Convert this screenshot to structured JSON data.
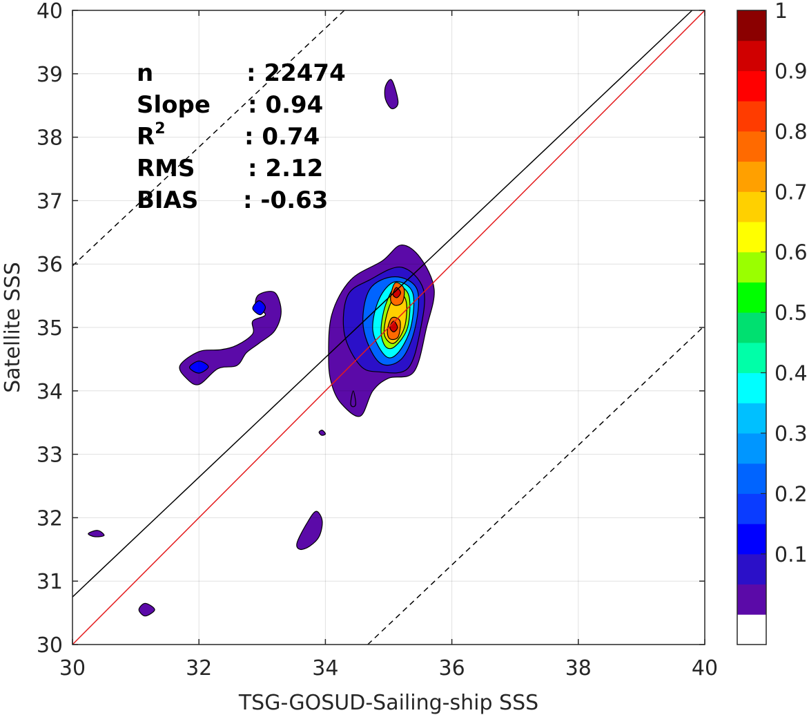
{
  "chart_data": {
    "type": "contour",
    "xlabel": "TSG-GOSUD-Sailing-ship SSS",
    "ylabel": "Satellite SSS",
    "xlim": [
      30,
      40
    ],
    "ylim": [
      30,
      40
    ],
    "xticks": [
      "30",
      "32",
      "34",
      "36",
      "38",
      "40"
    ],
    "yticks": [
      "30",
      "31",
      "32",
      "33",
      "34",
      "35",
      "36",
      "37",
      "38",
      "39",
      "40"
    ],
    "grid": true,
    "stats": [
      {
        "label": "n",
        "value": ": 22474"
      },
      {
        "label": "Slope",
        "value": ": 0.94"
      },
      {
        "label": "R",
        "sup": "2",
        "value": ": 0.74"
      },
      {
        "label": "RMS",
        "value": ": 2.12"
      },
      {
        "label": "BIAS",
        "value": ": -0.63"
      }
    ],
    "lines": [
      {
        "kind": "identity",
        "color": "#e41a1c",
        "x": [
          30,
          40
        ],
        "y": [
          30,
          40
        ]
      },
      {
        "kind": "regression",
        "color": "#000000",
        "x": [
          30,
          39.8
        ],
        "y": [
          30.75,
          40
        ]
      },
      {
        "kind": "upper-bound",
        "style": "dashed",
        "color": "#000000",
        "x": [
          30,
          34.3
        ],
        "y": [
          35.97,
          40
        ]
      },
      {
        "kind": "lower-bound",
        "style": "dashed",
        "color": "#000000",
        "x": [
          34.67,
          40
        ],
        "y": [
          30,
          35.03
        ]
      }
    ],
    "colorbar": {
      "ticks": [
        "0.1",
        "0.2",
        "0.3",
        "0.4",
        "0.5",
        "0.6",
        "0.7",
        "0.8",
        "0.9",
        "1"
      ],
      "colors": [
        "#ffffff",
        "#5b0aa8",
        "#2b10c8",
        "#0000ff",
        "#0a3cff",
        "#0064ff",
        "#0096ff",
        "#00c0ff",
        "#00ffff",
        "#00ffa8",
        "#00e070",
        "#00ff00",
        "#9aff00",
        "#ffff00",
        "#ffd000",
        "#ffa000",
        "#ff6a00",
        "#ff3c00",
        "#ff0000",
        "#d00000",
        "#8b0000"
      ]
    },
    "blobs": [
      {
        "level": 1,
        "points": [
          [
            34.05,
            34.5
          ],
          [
            34.1,
            35.2
          ],
          [
            34.4,
            35.75
          ],
          [
            34.9,
            36.05
          ],
          [
            35.2,
            36.3
          ],
          [
            35.5,
            36.1
          ],
          [
            35.72,
            35.6
          ],
          [
            35.6,
            35.0
          ],
          [
            35.4,
            34.3
          ],
          [
            35.0,
            34.2
          ],
          [
            34.75,
            34.0
          ],
          [
            34.55,
            33.6
          ],
          [
            34.25,
            33.8
          ],
          [
            34.1,
            34.1
          ]
        ]
      },
      {
        "level": 2,
        "points": [
          [
            34.3,
            34.9
          ],
          [
            34.35,
            35.5
          ],
          [
            34.7,
            35.75
          ],
          [
            35.2,
            35.95
          ],
          [
            35.55,
            35.6
          ],
          [
            35.5,
            34.95
          ],
          [
            35.3,
            34.35
          ],
          [
            34.85,
            34.3
          ],
          [
            34.55,
            34.4
          ]
        ]
      },
      {
        "level": 5,
        "points": [
          [
            34.6,
            35.0
          ],
          [
            34.7,
            35.6
          ],
          [
            35.1,
            35.8
          ],
          [
            35.45,
            35.6
          ],
          [
            35.42,
            35.0
          ],
          [
            35.2,
            34.5
          ],
          [
            34.85,
            34.45
          ]
        ]
      },
      {
        "level": 8,
        "points": [
          [
            34.75,
            34.95
          ],
          [
            34.85,
            35.45
          ],
          [
            35.1,
            35.72
          ],
          [
            35.38,
            35.55
          ],
          [
            35.35,
            35.0
          ],
          [
            35.15,
            34.6
          ],
          [
            34.95,
            34.55
          ]
        ]
      },
      {
        "level": 12,
        "points": [
          [
            34.88,
            34.95
          ],
          [
            34.95,
            35.35
          ],
          [
            35.12,
            35.65
          ],
          [
            35.32,
            35.5
          ],
          [
            35.3,
            35.0
          ],
          [
            35.1,
            34.7
          ],
          [
            34.95,
            34.7
          ]
        ]
      },
      {
        "level": 14,
        "points": [
          [
            34.93,
            34.9
          ],
          [
            35.0,
            35.3
          ],
          [
            35.15,
            35.55
          ],
          [
            35.28,
            35.4
          ],
          [
            35.25,
            35.0
          ],
          [
            35.08,
            34.75
          ]
        ]
      },
      {
        "level": 16,
        "points": [
          [
            34.98,
            34.95
          ],
          [
            35.05,
            35.15
          ],
          [
            35.18,
            35.1
          ],
          [
            35.15,
            34.85
          ],
          [
            35.02,
            34.82
          ]
        ]
      },
      {
        "level": 16,
        "points": [
          [
            35.03,
            35.45
          ],
          [
            35.1,
            35.7
          ],
          [
            35.24,
            35.62
          ],
          [
            35.22,
            35.4
          ],
          [
            35.1,
            35.35
          ]
        ]
      },
      {
        "level": 19,
        "points": [
          [
            35.02,
            35.0
          ],
          [
            35.08,
            35.1
          ],
          [
            35.14,
            35.0
          ],
          [
            35.08,
            34.93
          ]
        ]
      },
      {
        "level": 19,
        "points": [
          [
            35.07,
            35.52
          ],
          [
            35.12,
            35.63
          ],
          [
            35.19,
            35.55
          ],
          [
            35.13,
            35.47
          ]
        ]
      },
      {
        "level": 1,
        "points": [
          [
            31.7,
            34.4
          ],
          [
            32.0,
            34.62
          ],
          [
            32.35,
            34.65
          ],
          [
            32.6,
            34.72
          ],
          [
            32.85,
            34.9
          ],
          [
            32.85,
            35.1
          ],
          [
            33.05,
            35.2
          ],
          [
            32.9,
            35.35
          ],
          [
            32.95,
            35.52
          ],
          [
            33.2,
            35.55
          ],
          [
            33.3,
            35.25
          ],
          [
            33.2,
            34.95
          ],
          [
            32.95,
            34.75
          ],
          [
            32.75,
            34.6
          ],
          [
            32.6,
            34.4
          ],
          [
            32.3,
            34.35
          ],
          [
            32.0,
            34.1
          ],
          [
            31.8,
            34.2
          ]
        ]
      },
      {
        "level": 3,
        "points": [
          [
            31.85,
            34.37
          ],
          [
            32.0,
            34.47
          ],
          [
            32.15,
            34.38
          ],
          [
            32.0,
            34.28
          ]
        ]
      },
      {
        "level": 3,
        "points": [
          [
            32.85,
            35.3
          ],
          [
            32.95,
            35.42
          ],
          [
            33.05,
            35.32
          ],
          [
            32.97,
            35.2
          ]
        ]
      },
      {
        "level": 1,
        "points": [
          [
            34.95,
            38.8
          ],
          [
            35.05,
            38.9
          ],
          [
            35.15,
            38.55
          ],
          [
            35.05,
            38.45
          ],
          [
            34.95,
            38.6
          ]
        ]
      },
      {
        "level": 1,
        "points": [
          [
            33.55,
            31.6
          ],
          [
            33.7,
            31.9
          ],
          [
            33.85,
            32.1
          ],
          [
            33.95,
            31.95
          ],
          [
            33.9,
            31.7
          ],
          [
            33.75,
            31.55
          ],
          [
            33.6,
            31.5
          ]
        ]
      },
      {
        "level": 1,
        "points": [
          [
            30.25,
            31.75
          ],
          [
            30.4,
            31.8
          ],
          [
            30.5,
            31.72
          ],
          [
            30.35,
            31.7
          ]
        ]
      },
      {
        "level": 1,
        "points": [
          [
            31.05,
            30.55
          ],
          [
            31.15,
            30.65
          ],
          [
            31.3,
            30.55
          ],
          [
            31.15,
            30.45
          ]
        ]
      },
      {
        "level": 1,
        "points": [
          [
            33.9,
            33.35
          ],
          [
            33.95,
            33.38
          ],
          [
            34.0,
            33.32
          ],
          [
            33.94,
            33.3
          ]
        ]
      },
      {
        "level": 1,
        "points": [
          [
            34.4,
            33.8
          ],
          [
            34.44,
            34.0
          ],
          [
            34.48,
            33.8
          ],
          [
            34.44,
            33.75
          ]
        ]
      }
    ]
  }
}
